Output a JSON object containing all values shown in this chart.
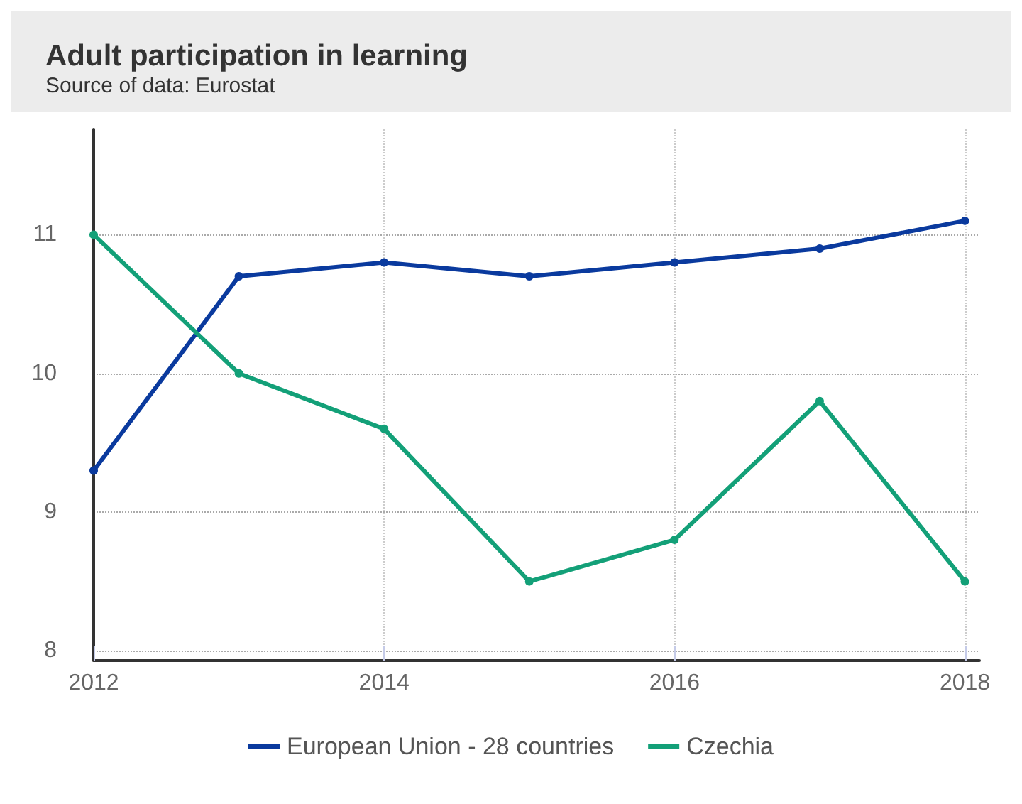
{
  "chart_data": {
    "type": "line",
    "title": "Adult participation in learning",
    "subtitle": "Source of data: Eurostat",
    "x": [
      2012,
      2013,
      2014,
      2015,
      2016,
      2017,
      2018
    ],
    "series": [
      {
        "name": "European Union - 28 countries",
        "color": "#0a3a9e",
        "values": [
          9.3,
          10.7,
          10.8,
          10.7,
          10.8,
          10.9,
          11.1
        ]
      },
      {
        "name": "Czechia",
        "color": "#13a078",
        "values": [
          11.0,
          10.0,
          9.6,
          8.5,
          8.8,
          9.8,
          8.5
        ]
      }
    ],
    "xlim": [
      2012,
      2018.1
    ],
    "xticks": [
      2012,
      2014,
      2016,
      2018
    ],
    "ylim": [
      7.93,
      11.76
    ],
    "yticks": [
      8,
      9,
      10,
      11
    ],
    "grid": true,
    "legend": "bottom",
    "marker": "circle",
    "line_style": "solid"
  }
}
